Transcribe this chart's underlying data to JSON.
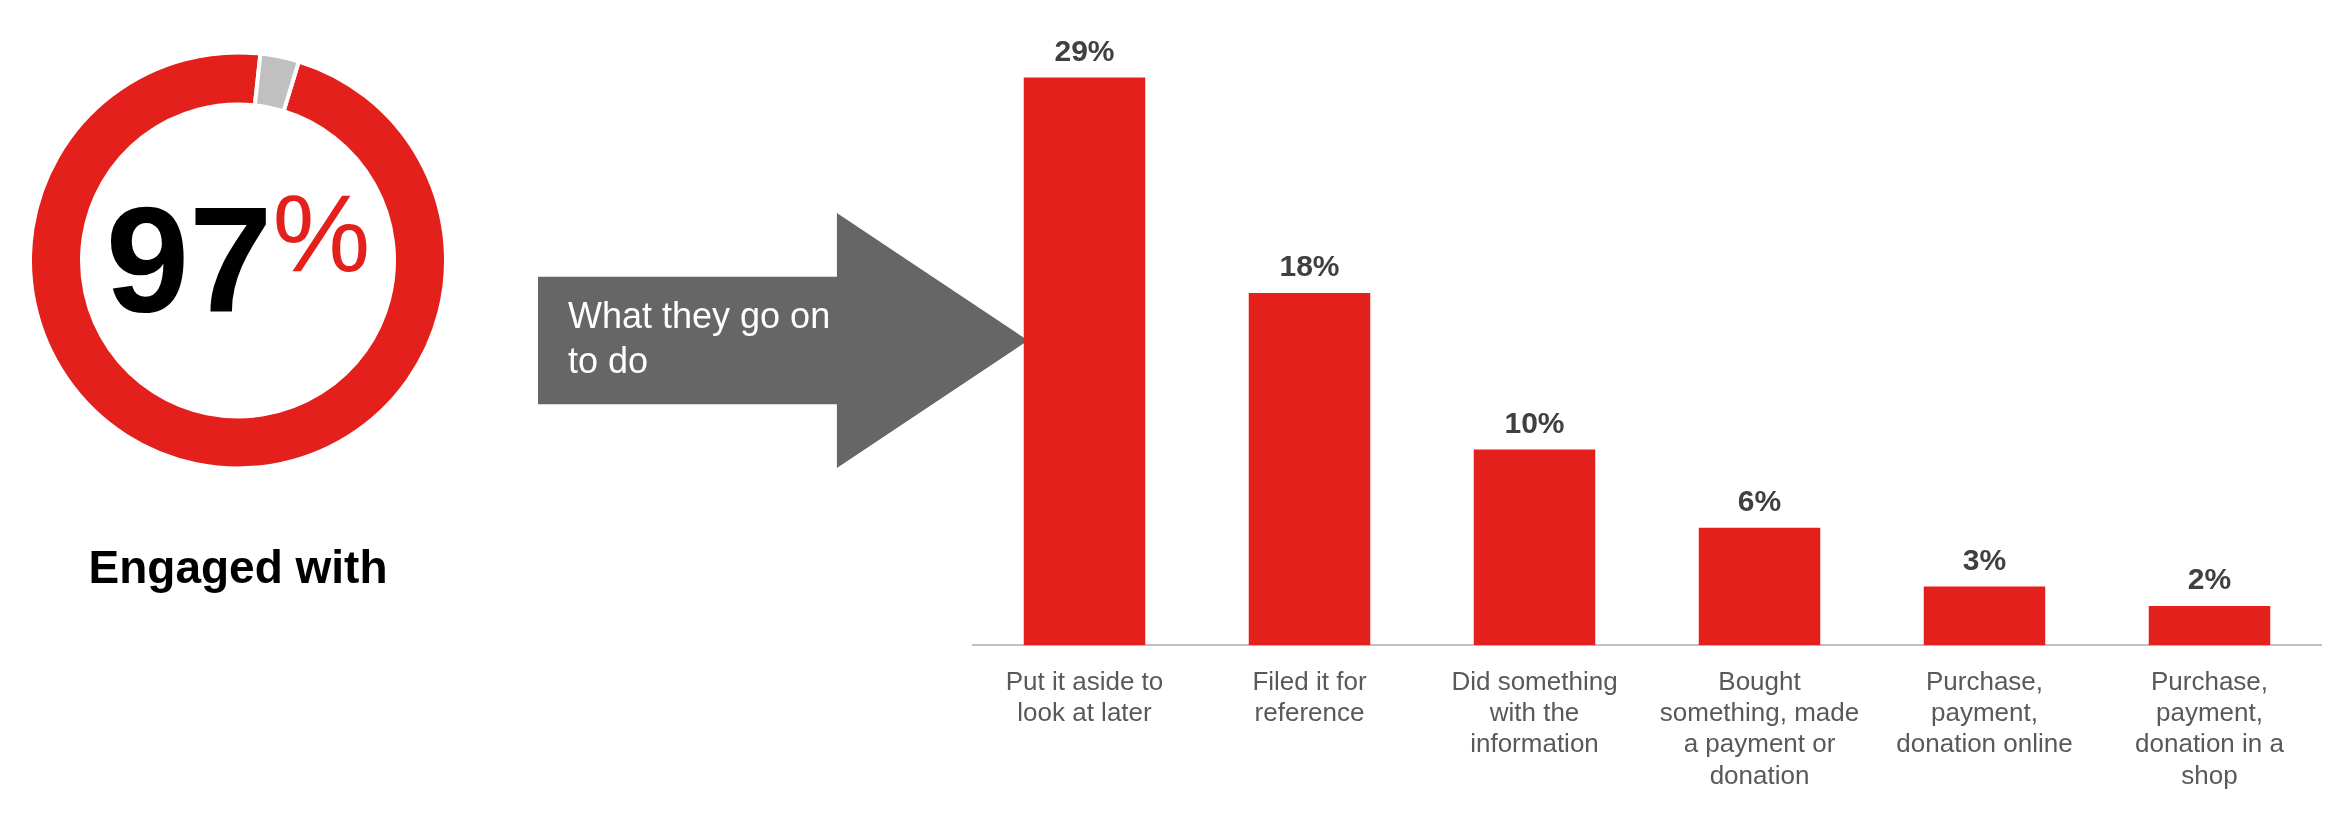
{
  "chart_data": [
    {
      "type": "donut",
      "title": "Engaged with",
      "categories": [
        null,
        null
      ],
      "values": [
        97,
        3
      ],
      "colors": [
        "#e3201b",
        "#c0c0c0"
      ],
      "value_labels": [
        "97%",
        null
      ],
      "legend": false
    },
    {
      "type": "bar",
      "annotations": [
        "What they go on to do"
      ],
      "categories": [
        "Put it aside to look at later",
        "Filed it for reference",
        "Did something with the information",
        "Bought something, made a payment or donation",
        "Purchase, payment, donation online",
        "Purchase, payment, donation in a shop"
      ],
      "values": [
        29,
        18,
        10,
        6,
        3,
        2
      ],
      "color": "#e3201b",
      "value_labels": [
        "29%",
        "18%",
        "10%",
        "6%",
        "3%",
        "2%"
      ],
      "tick_labels": "x",
      "grid": false,
      "legend": false
    }
  ]
}
